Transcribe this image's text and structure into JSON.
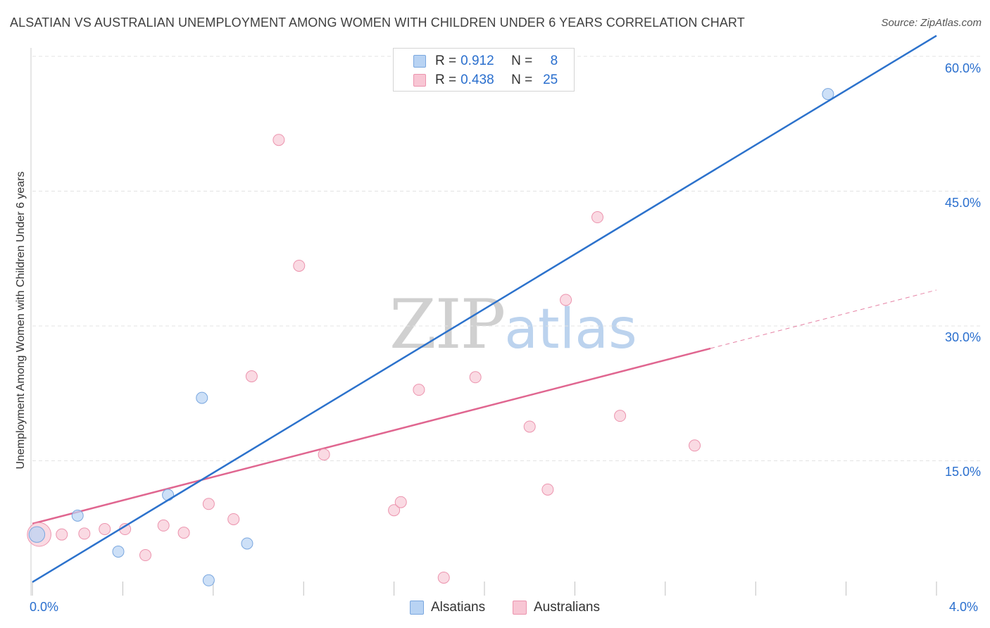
{
  "title": "ALSATIAN VS AUSTRALIAN UNEMPLOYMENT AMONG WOMEN WITH CHILDREN UNDER 6 YEARS CORRELATION CHART",
  "source": "Source: ZipAtlas.com",
  "watermark": {
    "zip": "ZIP",
    "atlas": "atlas"
  },
  "colors": {
    "blue_fill": "#b8d3f3",
    "blue_stroke": "#7aa7df",
    "blue_line": "#2c72cc",
    "pink_fill": "#f8c6d4",
    "pink_stroke": "#ec94ae",
    "pink_line": "#e06690",
    "grid": "#e3e3e3",
    "axis_text": "#2a6fce"
  },
  "legend": {
    "rows": [
      {
        "r_label": "R =",
        "r_value": "0.912",
        "n_label": "N =",
        "n_value": "8"
      },
      {
        "r_label": "R =",
        "r_value": "0.438",
        "n_label": "N =",
        "n_value": "25"
      }
    ]
  },
  "chart_data": {
    "type": "scatter",
    "title": "ALSATIAN VS AUSTRALIAN UNEMPLOYMENT AMONG WOMEN WITH CHILDREN UNDER 6 YEARS CORRELATION CHART",
    "xlabel": "",
    "ylabel": "Unemployment Among Women with Children Under 6 years",
    "xlim": [
      0.0,
      4.0
    ],
    "ylim": [
      0.0,
      60.0
    ],
    "x_tick_labels": [
      "0.0%",
      "4.0%"
    ],
    "y_ticks": [
      15,
      30,
      45,
      60
    ],
    "y_tick_labels": [
      "15.0%",
      "30.0%",
      "45.0%",
      "60.0%"
    ],
    "grid": true,
    "legend_position": "bottom",
    "series": [
      {
        "name": "Alsatians",
        "r": 0.912,
        "n": 8,
        "points": [
          {
            "x": 0.02,
            "y": 6.8,
            "size": 1.4
          },
          {
            "x": 0.2,
            "y": 8.9,
            "size": 1
          },
          {
            "x": 0.38,
            "y": 4.9,
            "size": 1
          },
          {
            "x": 0.6,
            "y": 11.2,
            "size": 1
          },
          {
            "x": 0.75,
            "y": 22.0,
            "size": 1
          },
          {
            "x": 0.78,
            "y": 1.7,
            "size": 1
          },
          {
            "x": 0.95,
            "y": 5.8,
            "size": 1
          },
          {
            "x": 3.52,
            "y": 55.8,
            "size": 1
          }
        ],
        "trend": {
          "x0": 0.0,
          "y0": 1.5,
          "x1": 4.0,
          "y1": 62.3,
          "dashed_to": null
        }
      },
      {
        "name": "Australians",
        "r": 0.438,
        "n": 25,
        "points": [
          {
            "x": 0.03,
            "y": 6.8,
            "size": 2.1
          },
          {
            "x": 0.13,
            "y": 6.8,
            "size": 1
          },
          {
            "x": 0.23,
            "y": 6.9,
            "size": 1
          },
          {
            "x": 0.32,
            "y": 7.4,
            "size": 1
          },
          {
            "x": 0.41,
            "y": 7.4,
            "size": 1
          },
          {
            "x": 0.5,
            "y": 4.5,
            "size": 1
          },
          {
            "x": 0.58,
            "y": 7.8,
            "size": 1
          },
          {
            "x": 0.67,
            "y": 7.0,
            "size": 1
          },
          {
            "x": 0.78,
            "y": 10.2,
            "size": 1
          },
          {
            "x": 0.89,
            "y": 8.5,
            "size": 1
          },
          {
            "x": 0.97,
            "y": 24.4,
            "size": 1
          },
          {
            "x": 1.09,
            "y": 50.7,
            "size": 1
          },
          {
            "x": 1.18,
            "y": 36.7,
            "size": 1
          },
          {
            "x": 1.29,
            "y": 15.7,
            "size": 1
          },
          {
            "x": 1.6,
            "y": 9.5,
            "size": 1
          },
          {
            "x": 1.63,
            "y": 10.4,
            "size": 1
          },
          {
            "x": 1.71,
            "y": 22.9,
            "size": 1
          },
          {
            "x": 1.82,
            "y": 2.0,
            "size": 1
          },
          {
            "x": 1.96,
            "y": 24.3,
            "size": 1
          },
          {
            "x": 2.2,
            "y": 18.8,
            "size": 1
          },
          {
            "x": 2.28,
            "y": 11.8,
            "size": 1
          },
          {
            "x": 2.36,
            "y": 32.9,
            "size": 1
          },
          {
            "x": 2.5,
            "y": 42.1,
            "size": 1
          },
          {
            "x": 2.6,
            "y": 20.0,
            "size": 1
          },
          {
            "x": 2.93,
            "y": 16.7,
            "size": 1
          }
        ],
        "trend": {
          "x0": 0.0,
          "y0": 8.0,
          "x1": 3.0,
          "y1": 27.5,
          "dashed_to": {
            "x": 4.0,
            "y": 34.0
          }
        }
      }
    ]
  },
  "bottom_legend": {
    "alsatians": "Alsatians",
    "australians": "Australians"
  }
}
